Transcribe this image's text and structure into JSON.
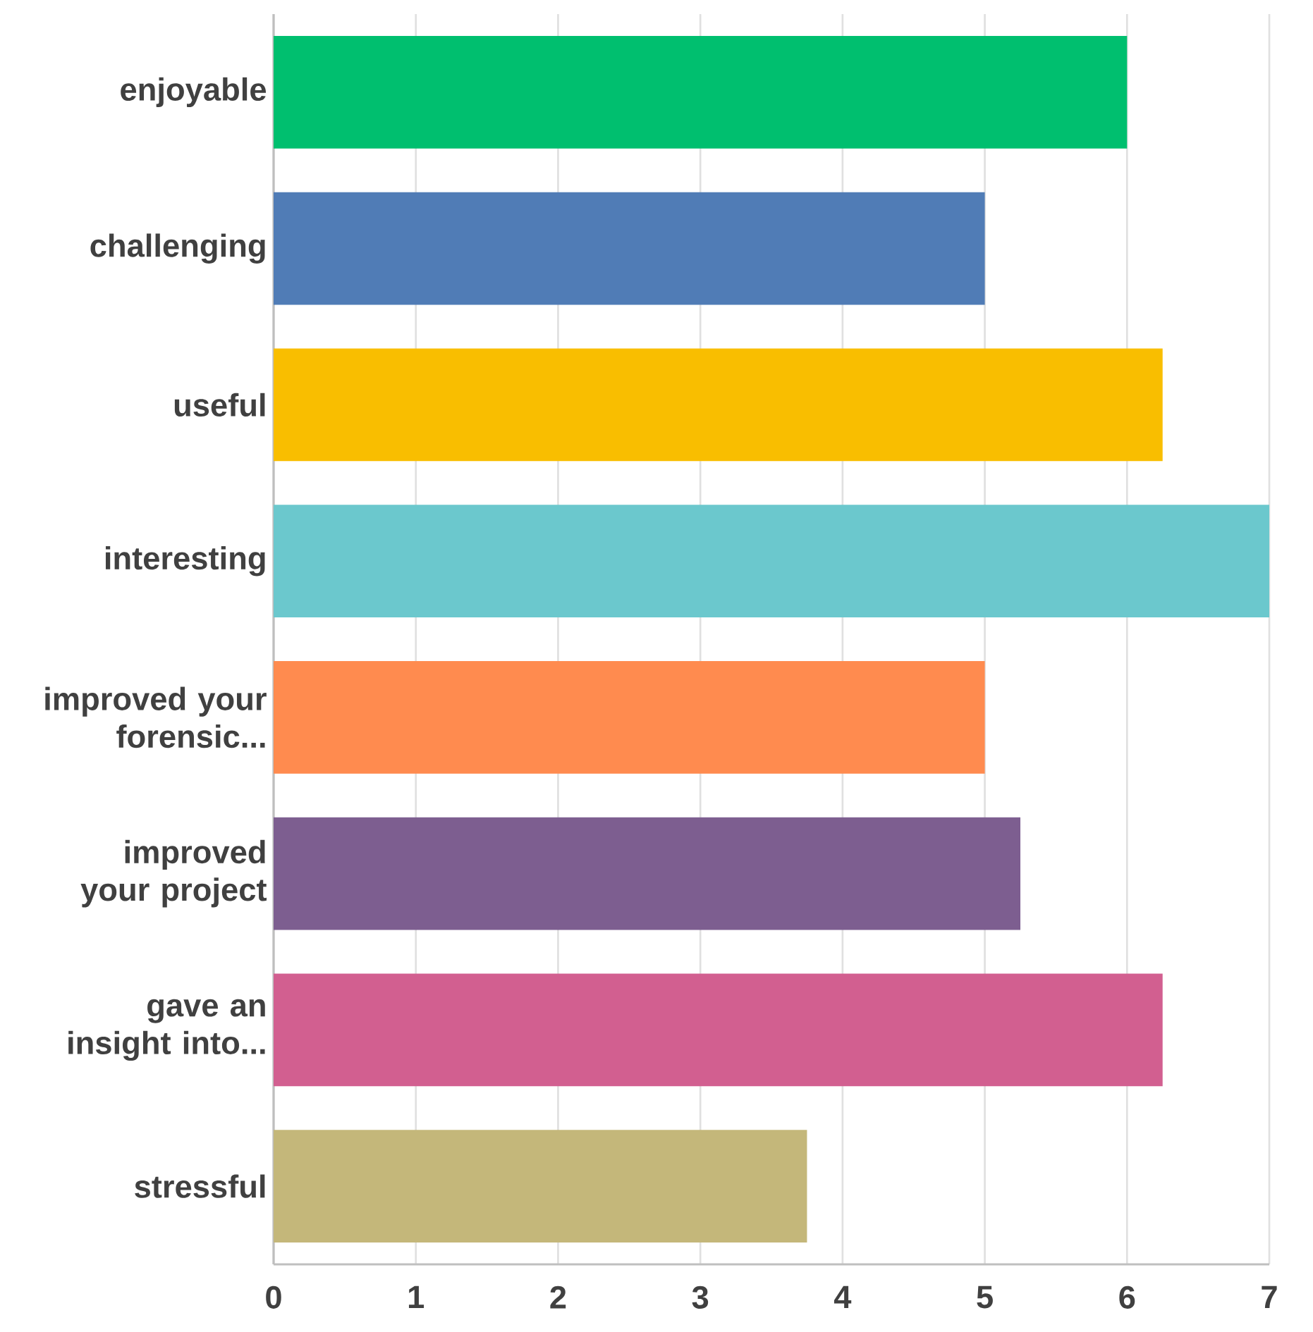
{
  "chart_data": {
    "type": "bar",
    "orientation": "horizontal",
    "categories": [
      "enjoyable",
      "challenging",
      "useful",
      "interesting",
      "improved your forensic...",
      "improved your project",
      "gave an insight into...",
      "stressful"
    ],
    "values": [
      6,
      5,
      6.25,
      7,
      5,
      5.25,
      6.25,
      3.75
    ],
    "colors": [
      "#00bf6f",
      "#507cb6",
      "#f9be00",
      "#6bc8cd",
      "#ff8b4f",
      "#7d5e90",
      "#d25f90",
      "#c4b77a"
    ],
    "xlim": [
      0,
      7
    ],
    "xticks": [
      0,
      1,
      2,
      3,
      4,
      5,
      6,
      7
    ],
    "grid": "x"
  }
}
